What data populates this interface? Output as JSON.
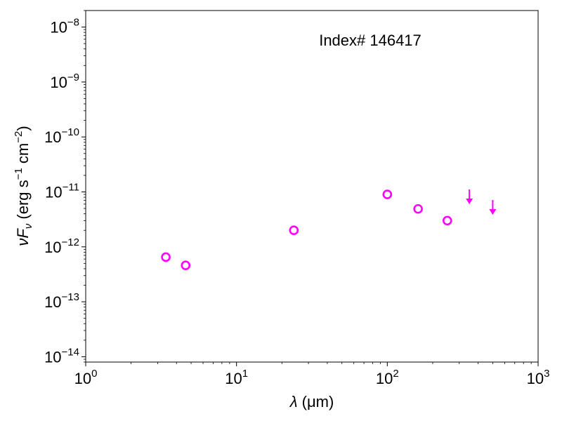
{
  "chart_data": {
    "type": "scatter",
    "annotation": "Index# 146417",
    "xlabel": {
      "symbol": "λ",
      "unit": "(μm)"
    },
    "ylabel": {
      "symbol": "νF",
      "subscript": "ν",
      "unit_open": "(erg s",
      "exp1": "−1",
      "mid": " cm",
      "exp2": "−2",
      "unit_close": ")"
    },
    "xscale": "log",
    "yscale": "log",
    "xlim": [
      1,
      1000
    ],
    "ylim": [
      8e-15,
      2e-08
    ],
    "xticks": [
      {
        "base": "10",
        "exp": "0",
        "value": 1
      },
      {
        "base": "10",
        "exp": "1",
        "value": 10
      },
      {
        "base": "10",
        "exp": "2",
        "value": 100
      },
      {
        "base": "10",
        "exp": "3",
        "value": 1000
      }
    ],
    "yticks": [
      {
        "base": "10",
        "exp": "−14",
        "value": 1e-14
      },
      {
        "base": "10",
        "exp": "−13",
        "value": 1e-13
      },
      {
        "base": "10",
        "exp": "−12",
        "value": 1e-12
      },
      {
        "base": "10",
        "exp": "−11",
        "value": 1e-11
      },
      {
        "base": "10",
        "exp": "−10",
        "value": 1e-10
      },
      {
        "base": "10",
        "exp": "−9",
        "value": 1e-09
      },
      {
        "base": "10",
        "exp": "−8",
        "value": 1e-08
      }
    ],
    "marker_color": "#ff00ff",
    "series": [
      {
        "marker": "open-circle",
        "x": [
          3.4,
          4.6,
          24,
          100,
          160,
          250
        ],
        "y": [
          6.5e-13,
          4.6e-13,
          2e-12,
          9e-12,
          4.9e-12,
          3e-12
        ]
      },
      {
        "marker": "upper-limit-arrow",
        "x": [
          350,
          500
        ],
        "y": [
          7.8e-12,
          5e-12
        ]
      }
    ],
    "grid": false
  }
}
